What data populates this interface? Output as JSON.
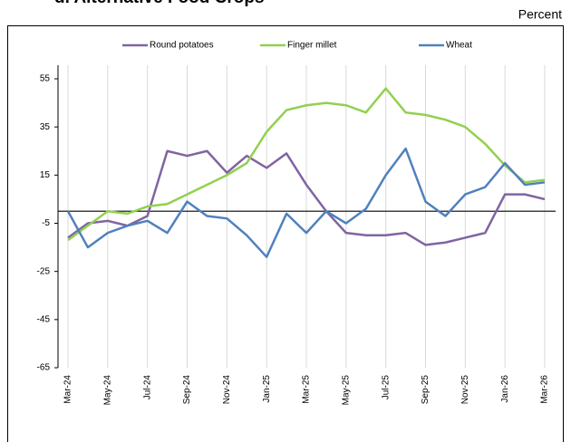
{
  "chart_data": {
    "type": "line",
    "title": "d. Alternative Food Crops",
    "unit_label": "Percent",
    "categories": [
      "Mar-24",
      null,
      "May-24",
      null,
      "Jul-24",
      null,
      "Sep-24",
      null,
      "Nov-24",
      null,
      "Jan-25",
      null,
      "Mar-25",
      null,
      "May-25",
      null,
      "Jul-25",
      null,
      "Sep-25",
      null,
      "Nov-25",
      null,
      "Jan-26",
      null,
      "Mar-26"
    ],
    "series": [
      {
        "name": "Round potatoes",
        "color": "#8064a2",
        "values": [
          -11,
          -5,
          -4,
          -6,
          -2,
          25,
          23,
          25,
          16,
          23,
          18,
          24,
          11,
          0,
          -9,
          -10,
          -10,
          -9,
          -14,
          -13,
          -11,
          -9,
          7,
          7,
          5
        ]
      },
      {
        "name": "Finger millet",
        "color": "#92d050",
        "values": [
          -12,
          -6,
          0,
          -1,
          2,
          3,
          7,
          11,
          15,
          20,
          33,
          42,
          44,
          45,
          44,
          41,
          51,
          41,
          40,
          38,
          35,
          28,
          19,
          12,
          13
        ]
      },
      {
        "name": "Wheat",
        "color": "#4f81bd",
        "values": [
          0,
          -15,
          -9,
          -6,
          -4,
          -9,
          4,
          -2,
          -3,
          -10,
          -19,
          -1,
          -9,
          0,
          -5,
          1,
          15,
          26,
          4,
          -2,
          7,
          10,
          20,
          11,
          12
        ]
      }
    ],
    "ylim": [
      -65,
      55
    ],
    "yticks": [
      55,
      35,
      15,
      -5,
      -25,
      -45,
      -65
    ],
    "grid": true,
    "legend": "top"
  }
}
